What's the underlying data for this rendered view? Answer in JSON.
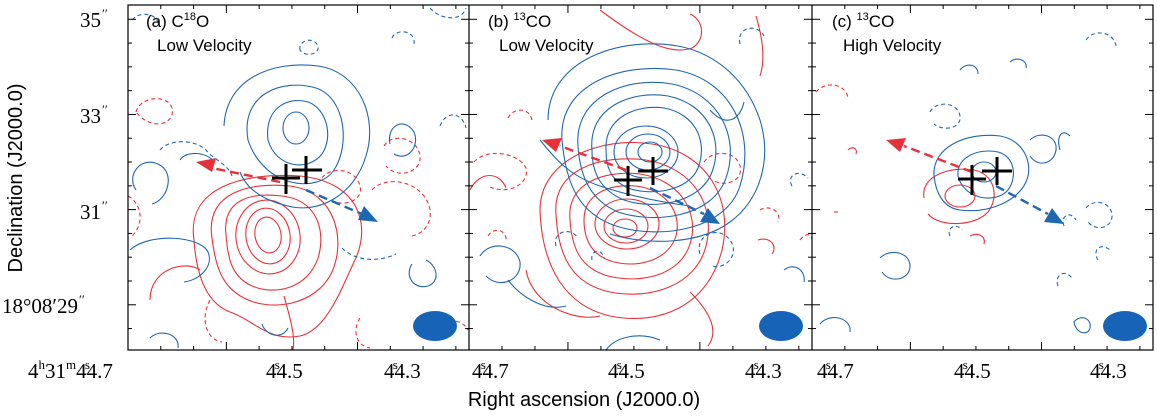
{
  "figure": {
    "ylabel": "Declination (J2000.0)",
    "xlabel": "Right ascension (J2000.0)"
  },
  "chart_data": {
    "type": "contour",
    "panels": [
      {
        "id": "a",
        "label": "(a) C18O",
        "label_prefix": "(a) C",
        "label_sup": "18",
        "label_suffix": "O",
        "subtitle": "Low Velocity"
      },
      {
        "id": "b",
        "label": "(b) 13CO",
        "label_prefix": "(b) ",
        "label_sup": "13",
        "label_suffix": "CO",
        "subtitle": "Low Velocity"
      },
      {
        "id": "c",
        "label": "(c) 13CO",
        "label_prefix": "(c) ",
        "label_sup": "13",
        "label_suffix": "CO",
        "subtitle": "High Velocity"
      }
    ],
    "y_ticks": [
      {
        "text": "35",
        "sec": 35
      },
      {
        "text": "33",
        "sec": 33
      },
      {
        "text": "31",
        "sec": 31
      },
      {
        "text": "18°08′29",
        "sec": 29
      }
    ],
    "x_ticks": [
      {
        "text": "4h31m44.7s",
        "pre": "4",
        "h": "h",
        "mid": "31",
        "m": "m",
        "main": "44.7",
        "sec": 44.7,
        "first": true
      },
      {
        "text": "44.5s",
        "main": "44.5",
        "sec": 44.5
      },
      {
        "text": "44.3s",
        "main": "44.3",
        "sec": 44.3
      }
    ],
    "x_range_s": [
      44.75,
      44.23
    ],
    "y_range_arcsec": [
      28.05,
      35.3
    ],
    "colors": {
      "red": "#e8313a",
      "blue": "#1f67b1",
      "beam": "#1763b7",
      "arrow_red": "#e8303a",
      "arrow_blue": "#1f67b1"
    },
    "crosses": [
      {
        "ra": 44.495,
        "dec": 31.65
      },
      {
        "ra": 44.478,
        "dec": 31.78
      }
    ],
    "beam": {
      "ra": 44.28,
      "dec": 28.95
    }
  }
}
